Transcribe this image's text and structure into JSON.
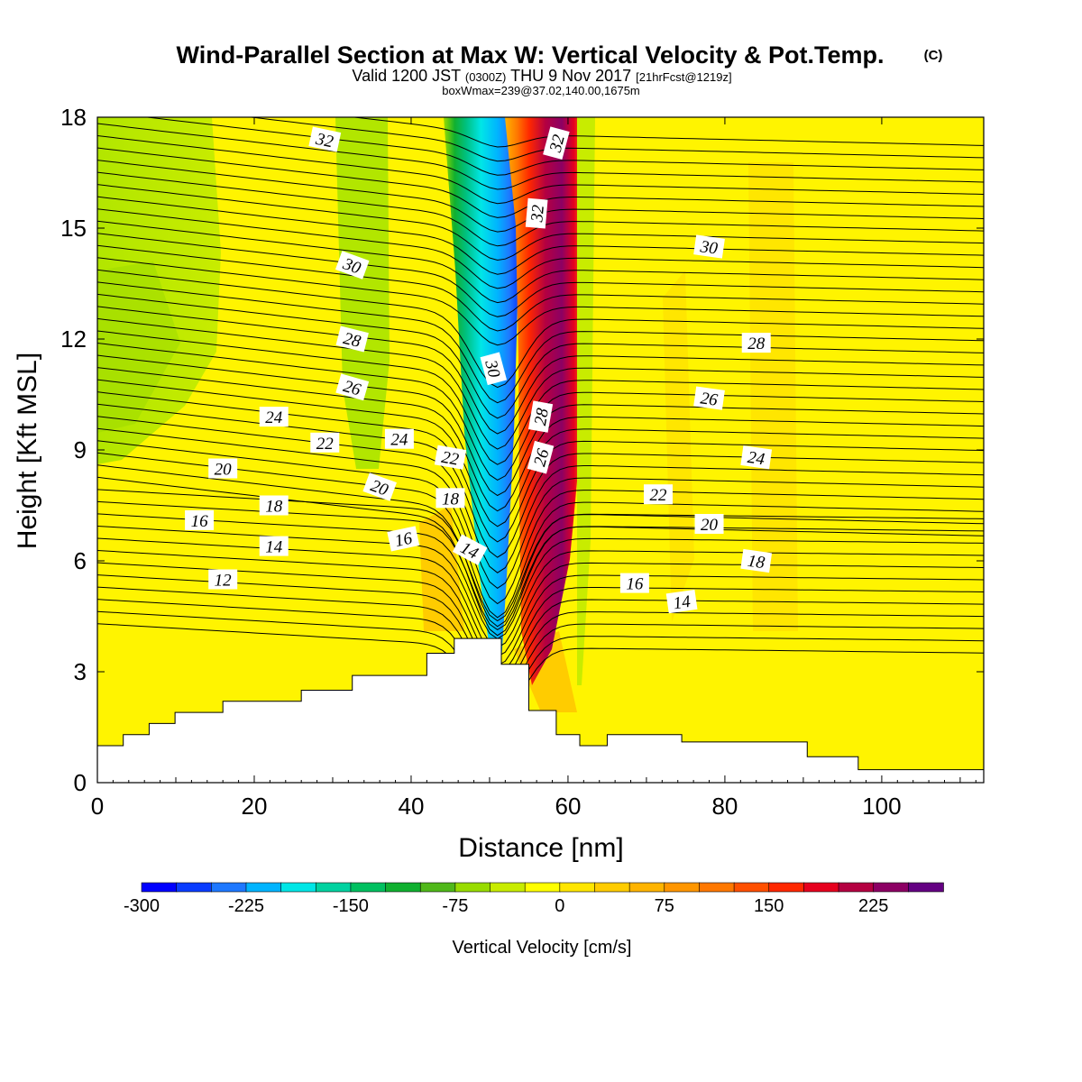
{
  "chart_data": {
    "type": "heatmap",
    "title": "Wind-Parallel Section at Max W: Vertical Velocity & Pot.Temp.",
    "copyright_mark": "(C)",
    "subtitle_parts": {
      "valid": "Valid 1200 JST",
      "utc": "(0300Z)",
      "date": "THU 9 Nov 2017",
      "fcst": "[21hrFcst@1219z]"
    },
    "subtitle2": "boxWmax=239@37.02,140.00,1675m",
    "xlabel": "Distance [nm]",
    "ylabel": "Height [Kft MSL]",
    "xlim": [
      0,
      113
    ],
    "ylim": [
      0,
      18
    ],
    "x_ticks": [
      "0",
      "20",
      "40",
      "60",
      "80",
      "100"
    ],
    "y_ticks": [
      "0",
      "3",
      "6",
      "9",
      "12",
      "15",
      "18"
    ],
    "colorbar": {
      "label": "Vertical Velocity [cm/s]",
      "tick_labels": [
        "-300",
        "-225",
        "-150",
        "-75",
        "0",
        "75",
        "150",
        "225"
      ],
      "colors": [
        "#0000ff",
        "#0a3cff",
        "#1e78ff",
        "#00b4ff",
        "#00e6e6",
        "#00d2a0",
        "#00c060",
        "#10b030",
        "#50b81a",
        "#98dc00",
        "#c8ec00",
        "#ffff00",
        "#ffe600",
        "#ffcc00",
        "#ffb400",
        "#ff9600",
        "#ff7800",
        "#ff5000",
        "#ff2800",
        "#e6001e",
        "#b40041",
        "#8c0064",
        "#640082"
      ]
    },
    "terrain_nm_kft": [
      [
        0,
        1.0
      ],
      [
        3.3,
        1.0
      ],
      [
        3.3,
        1.3
      ],
      [
        6.6,
        1.3
      ],
      [
        6.6,
        1.6
      ],
      [
        9.9,
        1.6
      ],
      [
        9.9,
        1.9
      ],
      [
        16,
        1.9
      ],
      [
        16,
        2.2
      ],
      [
        26,
        2.2
      ],
      [
        26,
        2.5
      ],
      [
        32.5,
        2.5
      ],
      [
        32.5,
        2.9
      ],
      [
        42,
        2.9
      ],
      [
        42,
        3.5
      ],
      [
        45.5,
        3.5
      ],
      [
        45.5,
        3.9
      ],
      [
        51.5,
        3.9
      ],
      [
        51.5,
        3.2
      ],
      [
        55,
        3.2
      ],
      [
        55,
        1.95
      ],
      [
        58.5,
        1.95
      ],
      [
        58.5,
        1.3
      ],
      [
        61.5,
        1.3
      ],
      [
        61.5,
        1.0
      ],
      [
        65,
        1.0
      ],
      [
        65,
        1.3
      ],
      [
        74.5,
        1.3
      ],
      [
        74.5,
        1.1
      ],
      [
        90.5,
        1.1
      ],
      [
        90.5,
        0.7
      ],
      [
        97,
        0.7
      ],
      [
        97,
        0.35
      ],
      [
        113,
        0.35
      ]
    ],
    "isotherm_labels": [
      {
        "text": "32",
        "x": 29,
        "y": 17.4,
        "rot": 12
      },
      {
        "text": "30",
        "x": 32.5,
        "y": 14.0,
        "rot": 20
      },
      {
        "text": "28",
        "x": 32.5,
        "y": 12.0,
        "rot": 14
      },
      {
        "text": "26",
        "x": 32.5,
        "y": 10.7,
        "rot": 16
      },
      {
        "text": "24",
        "x": 22.5,
        "y": 9.9,
        "rot": 0
      },
      {
        "text": "22",
        "x": 29,
        "y": 9.2,
        "rot": 0
      },
      {
        "text": "24",
        "x": 38.5,
        "y": 9.3,
        "rot": 0
      },
      {
        "text": "22",
        "x": 45,
        "y": 8.8,
        "rot": 10
      },
      {
        "text": "20",
        "x": 16,
        "y": 8.5,
        "rot": 0
      },
      {
        "text": "20",
        "x": 36,
        "y": 8.0,
        "rot": 20
      },
      {
        "text": "18",
        "x": 22.5,
        "y": 7.5,
        "rot": 0
      },
      {
        "text": "18",
        "x": 45,
        "y": 7.7,
        "rot": 0
      },
      {
        "text": "16",
        "x": 13,
        "y": 7.1,
        "rot": 0
      },
      {
        "text": "16",
        "x": 39,
        "y": 6.6,
        "rot": -12
      },
      {
        "text": "14",
        "x": 22.5,
        "y": 6.4,
        "rot": 0
      },
      {
        "text": "14",
        "x": 47.5,
        "y": 6.3,
        "rot": 28
      },
      {
        "text": "12",
        "x": 16,
        "y": 5.5,
        "rot": 0
      },
      {
        "text": "32",
        "x": 58.5,
        "y": 17.3,
        "rot": -75
      },
      {
        "text": "32",
        "x": 56,
        "y": 15.4,
        "rot": -85
      },
      {
        "text": "30",
        "x": 50.5,
        "y": 11.2,
        "rot": 75
      },
      {
        "text": "28",
        "x": 56.5,
        "y": 9.9,
        "rot": -80
      },
      {
        "text": "26",
        "x": 56.5,
        "y": 8.8,
        "rot": -75
      },
      {
        "text": "30",
        "x": 78,
        "y": 14.5,
        "rot": 8
      },
      {
        "text": "28",
        "x": 84,
        "y": 11.9,
        "rot": 0
      },
      {
        "text": "26",
        "x": 78,
        "y": 10.4,
        "rot": 8
      },
      {
        "text": "24",
        "x": 84,
        "y": 8.8,
        "rot": 8
      },
      {
        "text": "22",
        "x": 71.5,
        "y": 7.8,
        "rot": 0
      },
      {
        "text": "20",
        "x": 78,
        "y": 7.0,
        "rot": 0
      },
      {
        "text": "18",
        "x": 84,
        "y": 6.0,
        "rot": 8
      },
      {
        "text": "16",
        "x": 68.5,
        "y": 5.4,
        "rot": 0
      },
      {
        "text": "14",
        "x": 74.5,
        "y": 4.9,
        "rot": -8
      }
    ]
  }
}
